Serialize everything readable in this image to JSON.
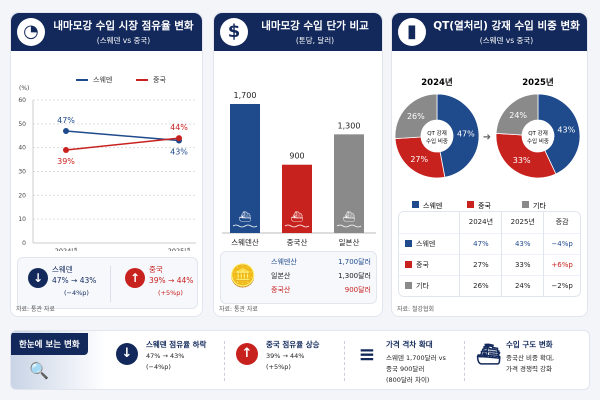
{
  "colors": {
    "navy": "#13295b",
    "sweden": "#1f4a8c",
    "china": "#c8221f",
    "other": "#8a8a8a"
  },
  "panel1": {
    "title": "내마모강 수입 시장 점유율 변화",
    "subtitle": "(스웨덴 vs 중국)",
    "icon": "pie-chart-icon",
    "unit": "(%)",
    "summary": {
      "sweden": {
        "name": "스웨덴",
        "change": "47% → 43%",
        "delta": "(−4%p)"
      },
      "china": {
        "name": "중국",
        "change": "39% → 44%",
        "delta": "(+5%p)"
      }
    },
    "source": "자료: 통관 자료"
  },
  "panel2": {
    "title": "내마모강 수입 단가 비교",
    "subtitle": "(톤당, 달러)",
    "icon": "dollar-icon",
    "legend": [
      {
        "name": "스웨덴산",
        "value": "1,700달러"
      },
      {
        "name": "일본산",
        "value": "1,300달러"
      },
      {
        "name": "중국산",
        "value": "900달러"
      }
    ],
    "source": "자료: 통관 자료"
  },
  "panel3": {
    "title": "QT(열처리) 강재 수입 비중 변화",
    "subtitle": "(스웨덴 vs 중국)",
    "icon": "bar-chart-icon",
    "center_label": "QT 강재\n수입 비중",
    "center_line1": "QT 강재",
    "center_line2": "수입 비중",
    "table": {
      "headers": [
        "",
        "2024년",
        "2025년",
        "증감"
      ],
      "rows": [
        [
          "스웨덴",
          "47%",
          "43%",
          "−4%p"
        ],
        [
          "중국",
          "27%",
          "33%",
          "+6%p"
        ],
        [
          "기타",
          "26%",
          "24%",
          "−2%p"
        ]
      ]
    },
    "source": "자료: 철강협회"
  },
  "chart_data": [
    {
      "type": "line",
      "categories": [
        "2024년",
        "2025년"
      ],
      "ylabel": "(%)",
      "ylim": [
        0,
        60
      ],
      "yticks": [
        0,
        10,
        20,
        30,
        40,
        50,
        60
      ],
      "grid": true,
      "legend_position": "top",
      "series": [
        {
          "name": "스웨덴",
          "values": [
            47,
            43
          ],
          "labels": [
            "47%",
            "43%"
          ]
        },
        {
          "name": "중국",
          "values": [
            39,
            44
          ],
          "labels": [
            "39%",
            "44%"
          ]
        }
      ]
    },
    {
      "type": "bar",
      "categories": [
        "스웨덴산",
        "중국산",
        "일본산"
      ],
      "values": [
        1700,
        900,
        1300
      ],
      "labels": [
        "1,700",
        "900",
        "1,300"
      ]
    },
    {
      "type": "pie",
      "title": "2024년",
      "categories": [
        "스웨덴",
        "중국",
        "기타"
      ],
      "values": [
        47,
        27,
        26
      ],
      "labels": [
        "47%",
        "27%",
        "26%"
      ]
    },
    {
      "type": "pie",
      "title": "2025년",
      "categories": [
        "스웨덴",
        "중국",
        "기타"
      ],
      "values": [
        43,
        33,
        24
      ],
      "labels": [
        "43%",
        "33%",
        "24%"
      ]
    }
  ],
  "bottom": {
    "label": "한눈에 보는 변화",
    "items": [
      {
        "title": "스웨덴 점유율 하락",
        "l1": "47% → 43%",
        "l2": "(−4%p)",
        "l3": ""
      },
      {
        "title": "중국 점유율 상승",
        "l1": "39% → 44%",
        "l2": "(+5%p)",
        "l3": ""
      },
      {
        "title": "가격 격차 확대",
        "l1": "스웨덴 1,700달러 vs",
        "l2": "중국 900달러",
        "l3": "(800달러 차이)"
      },
      {
        "title": "수입 구도 변화",
        "l1": "중국산 비중 확대,",
        "l2": "가격 경쟁력 강화",
        "l3": ""
      }
    ]
  }
}
